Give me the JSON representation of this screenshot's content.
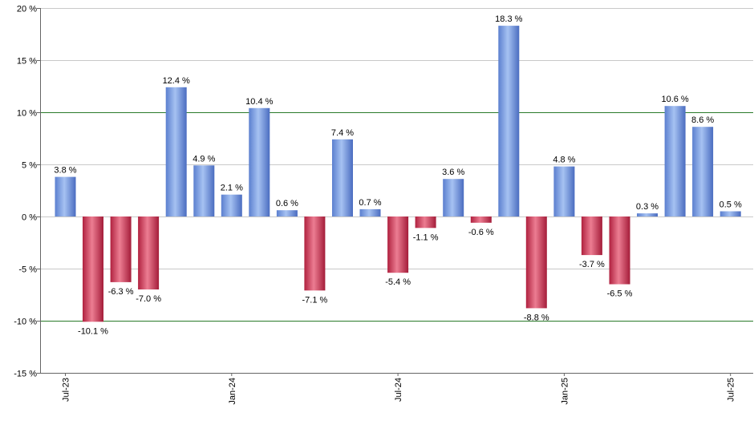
{
  "chart_data": {
    "type": "bar",
    "categories": [
      "Jul-23",
      "Aug-23",
      "Sep-23",
      "Oct-23",
      "Nov-23",
      "Dec-23",
      "Jan-24",
      "Feb-24",
      "Mar-24",
      "Apr-24",
      "May-24",
      "Jun-24",
      "Jul-24",
      "Aug-24",
      "Sep-24",
      "Oct-24",
      "Nov-24",
      "Dec-24",
      "Jan-25",
      "Feb-25",
      "Mar-25",
      "Apr-25",
      "May-25",
      "Jun-25",
      "Jul-25"
    ],
    "values": [
      3.8,
      -10.1,
      -6.3,
      -7.0,
      12.4,
      4.9,
      2.1,
      10.4,
      0.6,
      -7.1,
      7.4,
      0.7,
      -5.4,
      -1.1,
      3.6,
      -0.6,
      18.3,
      -8.8,
      4.8,
      -3.7,
      -6.5,
      0.3,
      10.6,
      8.6,
      0.5
    ],
    "data_labels": [
      "3.8 %",
      "-10.1 %",
      "-6.3 %",
      "-7.0 %",
      "12.4 %",
      "4.9 %",
      "2.1 %",
      "10.4 %",
      "0.6 %",
      "-7.1 %",
      "7.4 %",
      "0.7 %",
      "-5.4 %",
      "-1.1 %",
      "3.6 %",
      "-0.6 %",
      "18.3 %",
      "-8.8 %",
      "4.8 %",
      "-3.7 %",
      "-6.5 %",
      "0.3 %",
      "10.6 %",
      "8.6 %",
      "0.5 %"
    ],
    "x_tick_labels": [
      {
        "index": 0,
        "label": "Jul-23"
      },
      {
        "index": 6,
        "label": "Jan-24"
      },
      {
        "index": 12,
        "label": "Jul-24"
      },
      {
        "index": 18,
        "label": "Jan-25"
      },
      {
        "index": 24,
        "label": "Jul-25"
      }
    ],
    "y_ticks": [
      20,
      15,
      10,
      5,
      0,
      -5,
      -10,
      -15
    ],
    "y_tick_labels": [
      "20 %",
      "15 %",
      "10 %",
      "5 %",
      "0 %",
      "-5 %",
      "-10 %",
      "-15 %"
    ],
    "ylim": [
      -15,
      20
    ],
    "reference_lines": [
      10,
      -10
    ],
    "grid": true,
    "legend": "none",
    "title": "",
    "xlabel": "",
    "ylabel": "",
    "colors": {
      "positive": "#6f95db",
      "negative": "#c8324f",
      "grid": "#c9c9c9",
      "reference_line": "#2a7a2a",
      "axis": "#666666"
    }
  }
}
